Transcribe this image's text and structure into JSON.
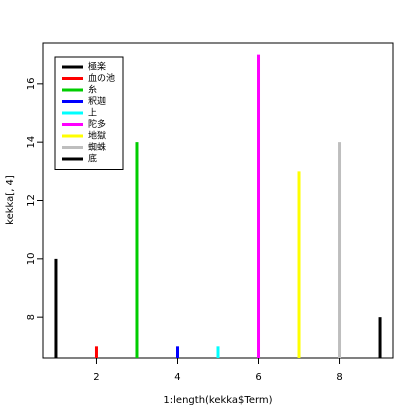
{
  "chart_data": {
    "type": "bar",
    "x": [
      1,
      2,
      3,
      4,
      5,
      6,
      7,
      8,
      9
    ],
    "values": [
      10,
      7,
      14,
      7,
      7,
      17,
      13,
      14,
      8
    ],
    "colors": [
      "#000000",
      "#ff0000",
      "#00cd00",
      "#0000ff",
      "#00ffff",
      "#ff00ff",
      "#ffff00",
      "#bebebe",
      "#000000"
    ],
    "xlabel": "1:length(kekka$Term)",
    "ylabel": "kekka[, 4]",
    "xlim": [
      0.68,
      9.32
    ],
    "ylim": [
      6.6,
      17.4
    ],
    "xticks": [
      2,
      4,
      6,
      8
    ],
    "yticks": [
      8,
      10,
      12,
      14,
      16
    ],
    "legend": {
      "position": "top-left",
      "labels": [
        "極楽",
        "血の池",
        "糸",
        "釈迦",
        "上",
        "陀多",
        "地獄",
        "蜘蛛",
        "底"
      ]
    }
  }
}
